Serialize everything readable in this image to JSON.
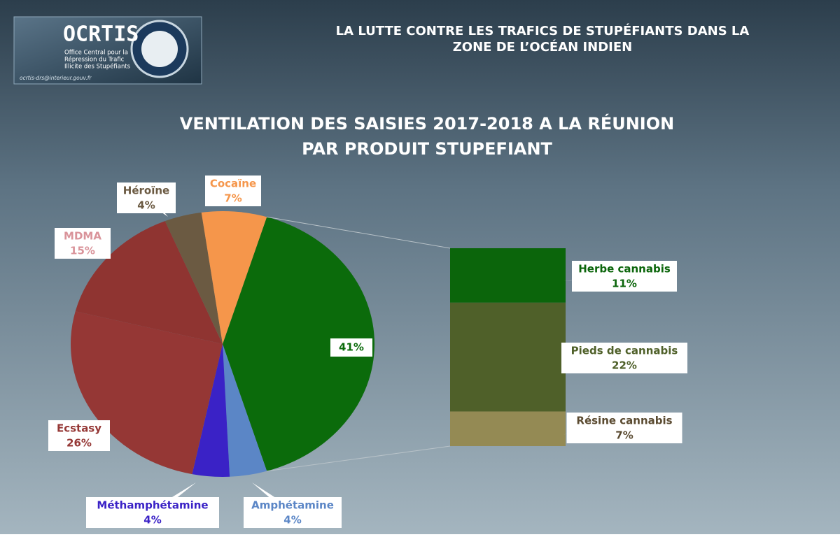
{
  "header": {
    "title": [
      "LA LUTTE CONTRE LES TRAFICS DE STUPÉFIANTS DANS LA",
      "ZONE DE L’OCÉAN INDIEN"
    ],
    "logo": {
      "name": "OCRTIS",
      "subtitle": [
        "Office Central pour la",
        "Répression du Trafic",
        "Illicite des Stupéfiants"
      ],
      "email": "ocrtis-drs@interieur.gouv.fr"
    }
  },
  "chart_data": {
    "type": "pie",
    "title": [
      "VENTILATION DES SAISIES 2017-2018 A LA RÉUNION",
      "PAR PRODUIT STUPEFIANT"
    ],
    "categories": [
      null,
      "Amphétamine",
      "Méthamphétamine",
      "Ecstasy",
      "MDMA",
      "Héroïne",
      "Cocaïne"
    ],
    "values": [
      41,
      4,
      4,
      26,
      15,
      4,
      7
    ],
    "value_labels": [
      "41%",
      "4%",
      "4%",
      "26%",
      "15%",
      "4%",
      "7%"
    ],
    "colors": [
      "#0b6b0b",
      "#5b86c6",
      "#3a22c6",
      "#953735",
      "#8f3431",
      "#6b5a42",
      "#f5964b"
    ],
    "breakdown": {
      "categories": [
        "Herbe cannabis",
        "Pieds de cannabis",
        "Résine cannabis"
      ],
      "values": [
        11,
        22,
        7
      ],
      "value_labels": [
        "11%",
        "22%",
        "7%"
      ],
      "colors": [
        "#0b650b",
        "#4f6029",
        "#948a54"
      ]
    }
  }
}
